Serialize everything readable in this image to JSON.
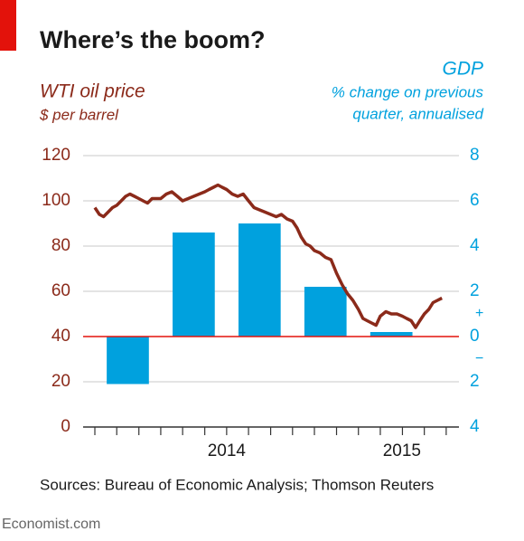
{
  "chart_data": {
    "type": "bar",
    "title": "Where’s the boom?",
    "y_label_sub": "$ per barrel",
    "y2_label_sub": [
      "% change on previous",
      "quarter, annualised"
    ],
    "source": "Sources: Bureau of Economic Analysis; Thomson Reuters",
    "footer": "Economist.com",
    "xlim": [
      2014.0,
      2015.33
    ],
    "xticks": [
      2014,
      2015
    ],
    "x_minor_ticks": [
      2014.0,
      2014.083,
      2014.167,
      2014.25,
      2014.333,
      2014.417,
      2014.5,
      2014.583,
      2014.667,
      2014.75,
      2014.833,
      2014.917,
      2015.0,
      2015.083,
      2015.167,
      2015.25,
      2015.333
    ],
    "ylim": [
      0,
      120
    ],
    "yticks": [
      0,
      20,
      40,
      60,
      80,
      100,
      120
    ],
    "y2lim": [
      -4,
      8
    ],
    "y2ticks": [
      8,
      6,
      4,
      2,
      0,
      {
        "value": -2,
        "label": "2"
      },
      {
        "value": -4,
        "label": "4"
      }
    ],
    "y2_sign_labels": [
      {
        "value": 1,
        "label": "+"
      },
      {
        "value": -1,
        "label": "−"
      }
    ],
    "grid": true,
    "series": [
      {
        "name": "WTI oil price",
        "type": "line",
        "axis": "y",
        "color": "#8b2a1a",
        "x": [
          2014.0,
          2014.017,
          2014.033,
          2014.05,
          2014.067,
          2014.083,
          2014.1,
          2014.117,
          2014.133,
          2014.15,
          2014.167,
          2014.183,
          2014.2,
          2014.217,
          2014.233,
          2014.25,
          2014.271,
          2014.292,
          2014.313,
          2014.333,
          2014.354,
          2014.375,
          2014.396,
          2014.417,
          2014.433,
          2014.45,
          2014.467,
          2014.483,
          2014.5,
          2014.521,
          2014.542,
          2014.563,
          2014.583,
          2014.604,
          2014.625,
          2014.646,
          2014.667,
          2014.688,
          2014.708,
          2014.729,
          2014.75,
          2014.767,
          2014.783,
          2014.8,
          2014.817,
          2014.833,
          2014.854,
          2014.875,
          2014.896,
          2014.917,
          2014.938,
          2014.958,
          2014.979,
          2015.0,
          2015.017,
          2015.033,
          2015.05,
          2015.067,
          2015.083,
          2015.104,
          2015.125,
          2015.146,
          2015.167,
          2015.183,
          2015.2,
          2015.217,
          2015.233,
          2015.25,
          2015.267,
          2015.283,
          2015.3,
          2015.317
        ],
        "values": [
          97,
          94,
          93,
          95,
          97,
          98,
          100,
          102,
          103,
          102,
          101,
          100,
          99,
          101,
          101,
          101,
          103,
          104,
          102,
          100,
          101,
          102,
          103,
          104,
          105,
          106,
          107,
          106,
          105,
          103,
          102,
          103,
          100,
          97,
          96,
          95,
          94,
          93,
          94,
          92,
          91,
          88,
          84,
          81,
          80,
          78,
          77,
          75,
          74,
          68,
          63,
          59,
          56,
          52,
          48,
          47,
          46,
          45,
          49,
          51,
          50,
          50,
          49,
          48,
          47,
          44,
          47,
          50,
          52,
          55,
          56,
          57
        ]
      },
      {
        "name": "GDP",
        "type": "bar",
        "axis": "y2",
        "color": "#00a1de",
        "x": [
          2014.125,
          2014.375,
          2014.625,
          2014.875,
          2015.125
        ],
        "values": [
          -2.1,
          4.6,
          5.0,
          2.2,
          0.2
        ]
      }
    ]
  }
}
